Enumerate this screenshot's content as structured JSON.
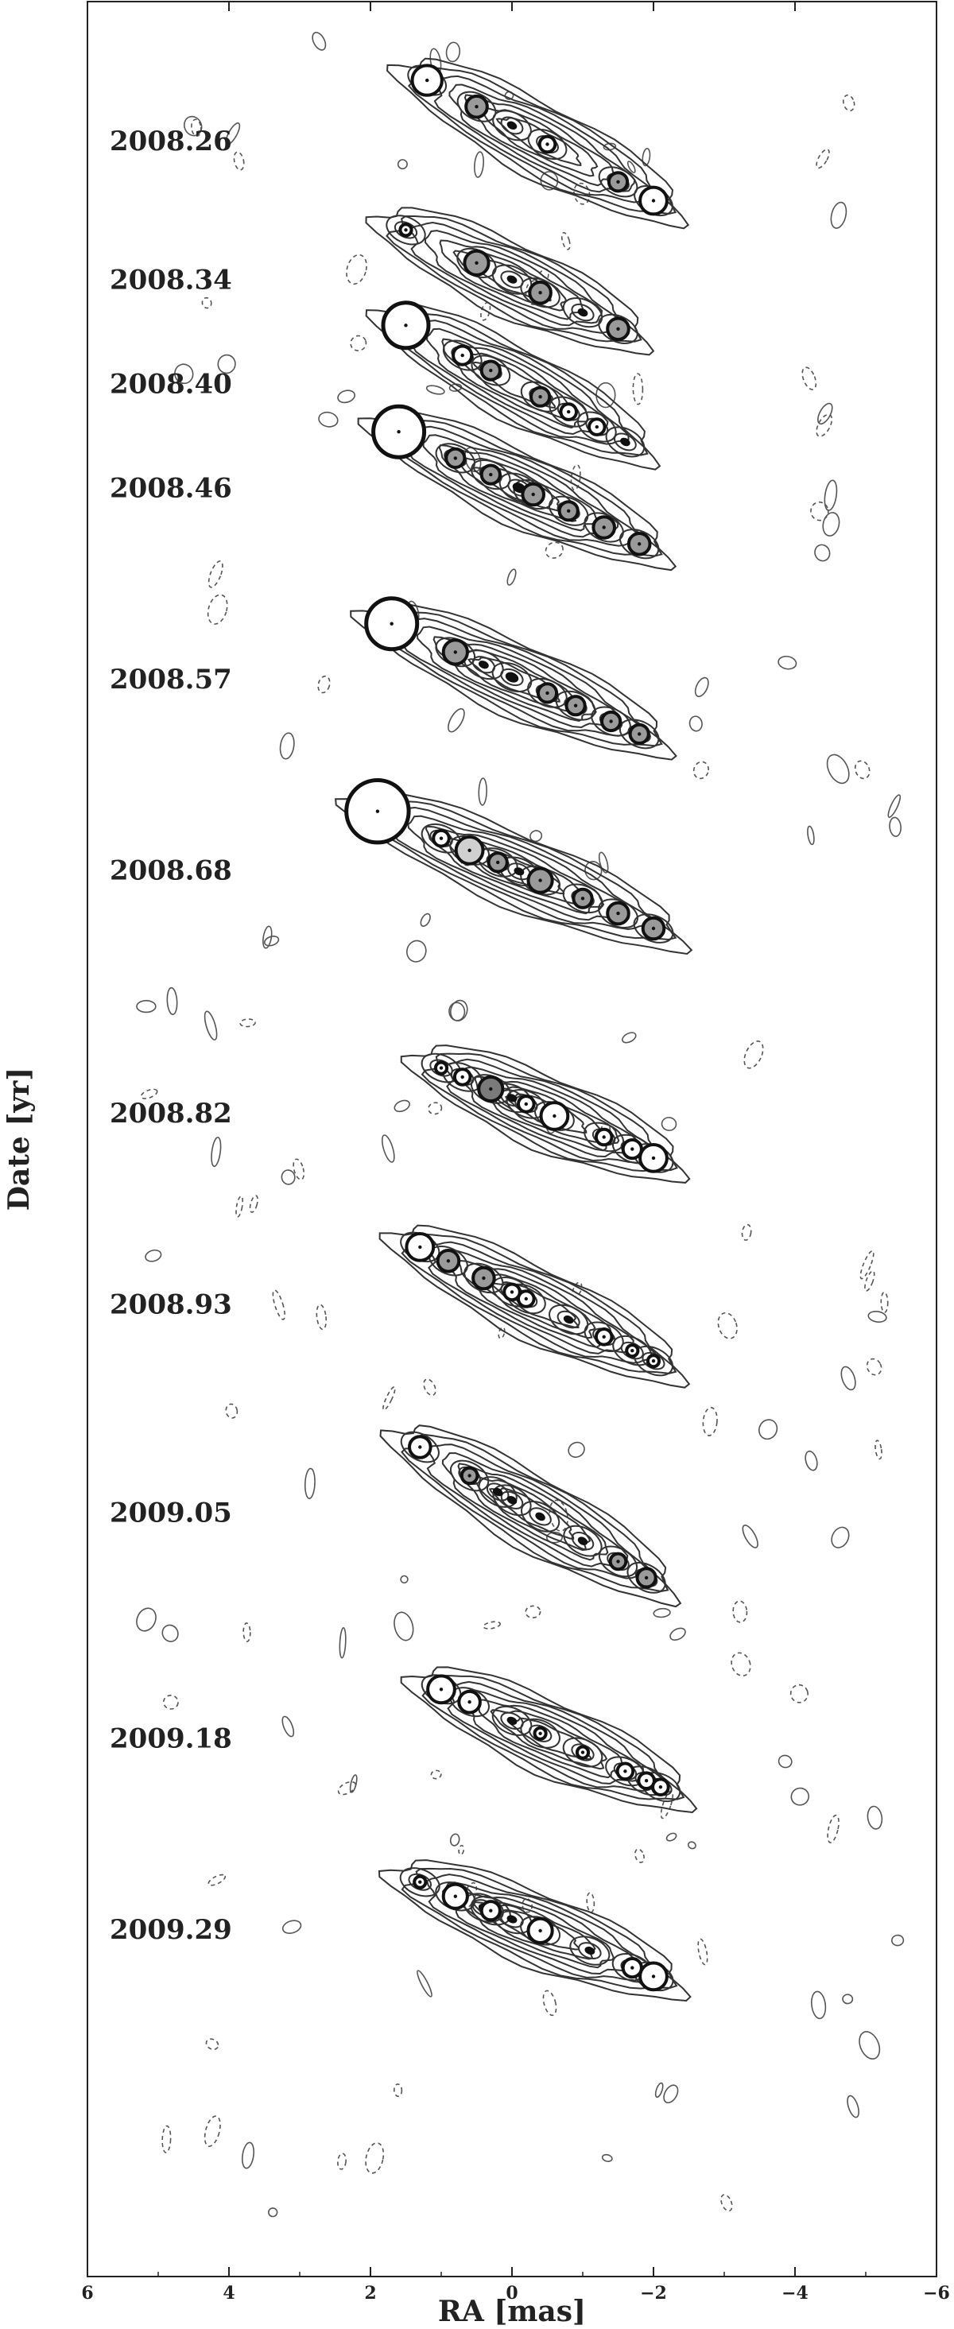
{
  "chart_data": {
    "type": "scatter",
    "title": "",
    "xlabel": "RA [mas]",
    "ylabel": "Date [yr]",
    "x_reversed": true,
    "xlim": [
      6,
      -6
    ],
    "xticks": [
      6,
      4,
      2,
      0,
      -2,
      -4,
      -6
    ],
    "xtick_labels": [
      "6",
      "4",
      "2",
      "0",
      "−2",
      "−4",
      "−6"
    ],
    "date_ylim": [
      2009.49,
      2008.18
    ],
    "ra_units_per_yr": 23.0,
    "epoch_labels": [
      "2008.26",
      "2008.34",
      "2008.40",
      "2008.46",
      "2008.57",
      "2008.68",
      "2008.82",
      "2008.93",
      "2009.05",
      "2009.18",
      "2009.29"
    ],
    "epochs": [
      {
        "date": 2008.26,
        "jet_pa": 28,
        "components": [
          {
            "x": 1.2,
            "y": 2008.26,
            "size": 0.21,
            "shade": "white"
          },
          {
            "x": 0.5,
            "y": 2008.26,
            "size": 0.15,
            "shade": "gray"
          },
          {
            "x": 0.0,
            "y": 2008.26,
            "size": 0.06,
            "shade": "black"
          },
          {
            "x": -0.5,
            "y": 2008.26,
            "size": 0.11,
            "shade": "white"
          },
          {
            "x": -1.5,
            "y": 2008.26,
            "size": 0.13,
            "shade": "gray"
          },
          {
            "x": -2.0,
            "y": 2008.26,
            "size": 0.19,
            "shade": "white"
          }
        ]
      },
      {
        "date": 2008.34,
        "jet_pa": 25,
        "components": [
          {
            "x": 1.5,
            "y": 2008.34,
            "size": 0.08,
            "shade": "white"
          },
          {
            "x": 0.5,
            "y": 2008.34,
            "size": 0.17,
            "shade": "gray"
          },
          {
            "x": 0.0,
            "y": 2008.34,
            "size": 0.06,
            "shade": "black"
          },
          {
            "x": -0.4,
            "y": 2008.34,
            "size": 0.15,
            "shade": "gray"
          },
          {
            "x": -1.0,
            "y": 2008.34,
            "size": 0.06,
            "shade": "black"
          },
          {
            "x": -1.5,
            "y": 2008.34,
            "size": 0.15,
            "shade": "gray"
          }
        ]
      },
      {
        "date": 2008.4,
        "jet_pa": 28,
        "components": [
          {
            "x": 1.5,
            "y": 2008.4,
            "size": 0.32,
            "shade": "white"
          },
          {
            "x": 0.7,
            "y": 2008.4,
            "size": 0.13,
            "shade": "white"
          },
          {
            "x": 0.3,
            "y": 2008.4,
            "size": 0.13,
            "shade": "gray"
          },
          {
            "x": -0.4,
            "y": 2008.4,
            "size": 0.13,
            "shade": "gray"
          },
          {
            "x": -0.8,
            "y": 2008.4,
            "size": 0.11,
            "shade": "white"
          },
          {
            "x": -1.2,
            "y": 2008.4,
            "size": 0.11,
            "shade": "white"
          },
          {
            "x": -1.6,
            "y": 2008.4,
            "size": 0.06,
            "shade": "black"
          }
        ]
      },
      {
        "date": 2008.46,
        "jet_pa": 25,
        "components": [
          {
            "x": 1.6,
            "y": 2008.46,
            "size": 0.36,
            "shade": "white"
          },
          {
            "x": 0.8,
            "y": 2008.46,
            "size": 0.13,
            "shade": "gray"
          },
          {
            "x": 0.3,
            "y": 2008.46,
            "size": 0.13,
            "shade": "gray"
          },
          {
            "x": -0.1,
            "y": 2008.46,
            "size": 0.08,
            "shade": "black"
          },
          {
            "x": -0.3,
            "y": 2008.46,
            "size": 0.15,
            "shade": "gray"
          },
          {
            "x": -0.8,
            "y": 2008.46,
            "size": 0.13,
            "shade": "gray"
          },
          {
            "x": -1.3,
            "y": 2008.46,
            "size": 0.15,
            "shade": "gray"
          },
          {
            "x": -1.8,
            "y": 2008.46,
            "size": 0.15,
            "shade": "gray"
          }
        ]
      },
      {
        "date": 2008.57,
        "jet_pa": 24,
        "components": [
          {
            "x": 1.7,
            "y": 2008.57,
            "size": 0.36,
            "shade": "white"
          },
          {
            "x": 0.8,
            "y": 2008.57,
            "size": 0.17,
            "shade": "gray"
          },
          {
            "x": 0.4,
            "y": 2008.57,
            "size": 0.06,
            "shade": "black"
          },
          {
            "x": 0.0,
            "y": 2008.57,
            "size": 0.08,
            "shade": "black"
          },
          {
            "x": -0.5,
            "y": 2008.57,
            "size": 0.13,
            "shade": "gray"
          },
          {
            "x": -0.9,
            "y": 2008.57,
            "size": 0.13,
            "shade": "gray"
          },
          {
            "x": -1.4,
            "y": 2008.57,
            "size": 0.13,
            "shade": "gray"
          },
          {
            "x": -1.8,
            "y": 2008.57,
            "size": 0.13,
            "shade": "gray"
          }
        ]
      },
      {
        "date": 2008.68,
        "jet_pa": 23,
        "components": [
          {
            "x": 1.9,
            "y": 2008.68,
            "size": 0.44,
            "shade": "white"
          },
          {
            "x": 1.0,
            "y": 2008.68,
            "size": 0.11,
            "shade": "white"
          },
          {
            "x": 0.6,
            "y": 2008.68,
            "size": 0.19,
            "shade": "light"
          },
          {
            "x": 0.2,
            "y": 2008.68,
            "size": 0.13,
            "shade": "gray"
          },
          {
            "x": -0.1,
            "y": 2008.68,
            "size": 0.06,
            "shade": "black"
          },
          {
            "x": -0.4,
            "y": 2008.68,
            "size": 0.17,
            "shade": "gray"
          },
          {
            "x": -1.0,
            "y": 2008.68,
            "size": 0.13,
            "shade": "gray"
          },
          {
            "x": -1.5,
            "y": 2008.68,
            "size": 0.15,
            "shade": "gray"
          },
          {
            "x": -2.0,
            "y": 2008.68,
            "size": 0.15,
            "shade": "gray"
          }
        ]
      },
      {
        "date": 2008.82,
        "jet_pa": 23,
        "components": [
          {
            "x": 1.0,
            "y": 2008.82,
            "size": 0.08,
            "shade": "white"
          },
          {
            "x": 0.7,
            "y": 2008.82,
            "size": 0.11,
            "shade": "white"
          },
          {
            "x": 0.3,
            "y": 2008.82,
            "size": 0.17,
            "shade": "dark"
          },
          {
            "x": 0.0,
            "y": 2008.82,
            "size": 0.06,
            "shade": "black"
          },
          {
            "x": -0.2,
            "y": 2008.82,
            "size": 0.11,
            "shade": "white"
          },
          {
            "x": -0.6,
            "y": 2008.82,
            "size": 0.19,
            "shade": "white"
          },
          {
            "x": -1.3,
            "y": 2008.82,
            "size": 0.11,
            "shade": "white"
          },
          {
            "x": -1.7,
            "y": 2008.82,
            "size": 0.13,
            "shade": "white"
          },
          {
            "x": -2.0,
            "y": 2008.82,
            "size": 0.19,
            "shade": "white"
          }
        ]
      },
      {
        "date": 2008.93,
        "jet_pa": 26,
        "components": [
          {
            "x": 1.3,
            "y": 2008.93,
            "size": 0.19,
            "shade": "white"
          },
          {
            "x": 0.9,
            "y": 2008.93,
            "size": 0.15,
            "shade": "gray"
          },
          {
            "x": 0.4,
            "y": 2008.93,
            "size": 0.15,
            "shade": "gray"
          },
          {
            "x": 0.0,
            "y": 2008.93,
            "size": 0.11,
            "shade": "white"
          },
          {
            "x": -0.2,
            "y": 2008.93,
            "size": 0.11,
            "shade": "white"
          },
          {
            "x": -0.8,
            "y": 2008.93,
            "size": 0.06,
            "shade": "black"
          },
          {
            "x": -1.3,
            "y": 2008.93,
            "size": 0.11,
            "shade": "white"
          },
          {
            "x": -1.7,
            "y": 2008.93,
            "size": 0.08,
            "shade": "white"
          },
          {
            "x": -2.0,
            "y": 2008.93,
            "size": 0.08,
            "shade": "white"
          }
        ]
      },
      {
        "date": 2009.05,
        "jet_pa": 30,
        "components": [
          {
            "x": 1.3,
            "y": 2009.05,
            "size": 0.15,
            "shade": "white"
          },
          {
            "x": 0.6,
            "y": 2009.05,
            "size": 0.11,
            "shade": "gray"
          },
          {
            "x": 0.2,
            "y": 2009.05,
            "size": 0.06,
            "shade": "black"
          },
          {
            "x": 0.0,
            "y": 2009.05,
            "size": 0.06,
            "shade": "black"
          },
          {
            "x": -0.4,
            "y": 2009.05,
            "size": 0.06,
            "shade": "black"
          },
          {
            "x": -1.0,
            "y": 2009.05,
            "size": 0.06,
            "shade": "black"
          },
          {
            "x": -1.5,
            "y": 2009.05,
            "size": 0.11,
            "shade": "gray"
          },
          {
            "x": -1.9,
            "y": 2009.05,
            "size": 0.13,
            "shade": "gray"
          }
        ]
      },
      {
        "date": 2009.18,
        "jet_pa": 24,
        "components": [
          {
            "x": 1.0,
            "y": 2009.18,
            "size": 0.19,
            "shade": "white"
          },
          {
            "x": 0.6,
            "y": 2009.18,
            "size": 0.15,
            "shade": "white"
          },
          {
            "x": 0.0,
            "y": 2009.18,
            "size": 0.06,
            "shade": "black"
          },
          {
            "x": -0.4,
            "y": 2009.18,
            "size": 0.08,
            "shade": "white"
          },
          {
            "x": -1.0,
            "y": 2009.18,
            "size": 0.08,
            "shade": "white"
          },
          {
            "x": -1.6,
            "y": 2009.18,
            "size": 0.11,
            "shade": "white"
          },
          {
            "x": -1.9,
            "y": 2009.18,
            "size": 0.11,
            "shade": "white"
          },
          {
            "x": -2.1,
            "y": 2009.18,
            "size": 0.11,
            "shade": "white"
          }
        ]
      },
      {
        "date": 2009.29,
        "jet_pa": 22,
        "components": [
          {
            "x": 1.3,
            "y": 2009.29,
            "size": 0.08,
            "shade": "white"
          },
          {
            "x": 0.8,
            "y": 2009.29,
            "size": 0.17,
            "shade": "white"
          },
          {
            "x": 0.4,
            "y": 2009.29,
            "size": 0.06,
            "shade": "black"
          },
          {
            "x": 0.3,
            "y": 2009.29,
            "size": 0.13,
            "shade": "white"
          },
          {
            "x": 0.0,
            "y": 2009.29,
            "size": 0.06,
            "shade": "black"
          },
          {
            "x": -0.4,
            "y": 2009.29,
            "size": 0.17,
            "shade": "white"
          },
          {
            "x": -1.1,
            "y": 2009.29,
            "size": 0.06,
            "shade": "black"
          },
          {
            "x": -1.7,
            "y": 2009.29,
            "size": 0.13,
            "shade": "white"
          },
          {
            "x": -2.0,
            "y": 2009.29,
            "size": 0.19,
            "shade": "white"
          }
        ]
      }
    ],
    "colors": {
      "white": "#ffffff",
      "light": "#d0d0d0",
      "gray": "#9a9a9a",
      "dark": "#7a7a7a",
      "black": "#111111",
      "stroke": "#111111"
    }
  }
}
